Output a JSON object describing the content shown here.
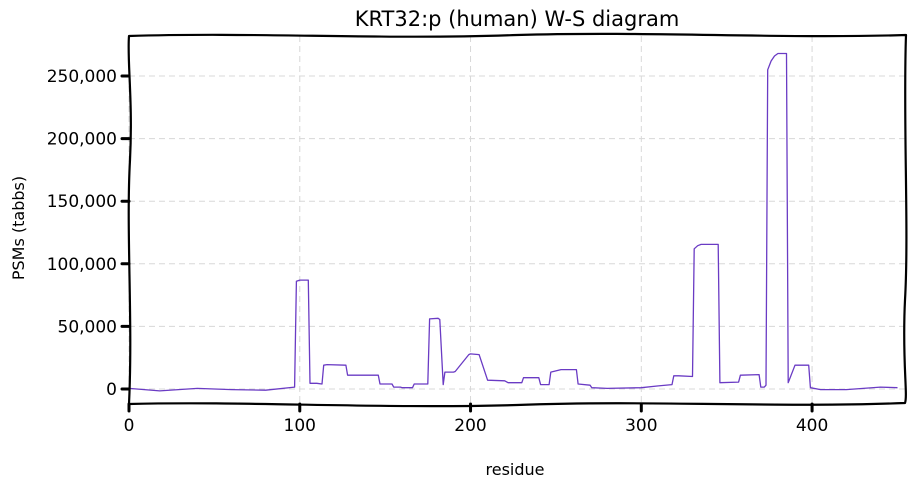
{
  "chart_data": {
    "type": "line",
    "title": "KRT32:p (human) W-S diagram",
    "xlabel": "residue",
    "ylabel": "PSMs (tabbs)",
    "xlim": [
      0,
      455
    ],
    "ylim": [
      -12000,
      282000
    ],
    "xticks": [
      0,
      100,
      200,
      300,
      400
    ],
    "xtick_labels": [
      "0",
      "100",
      "200",
      "300",
      "400"
    ],
    "yticks": [
      0,
      50000,
      100000,
      150000,
      200000,
      250000
    ],
    "ytick_labels": [
      "0",
      "50,000",
      "100,000",
      "150,000",
      "200,000",
      "250,000"
    ],
    "grid": true,
    "series": [
      {
        "color": "#6a3bc4",
        "x": [
          0,
          18,
          40,
          60,
          80,
          97,
          98,
          100,
          105,
          106,
          110,
          113,
          114,
          116,
          127,
          128,
          146,
          147,
          154,
          155,
          159,
          160,
          166,
          167,
          175,
          176,
          181,
          182,
          184,
          185,
          190,
          191,
          199,
          200,
          205,
          210,
          220,
          222,
          230,
          231,
          240,
          241,
          246,
          247,
          253,
          254,
          262,
          263,
          270,
          271,
          280,
          300,
          310,
          318,
          319,
          322,
          330,
          331,
          333,
          335,
          345,
          346,
          357,
          358,
          369,
          370,
          372,
          373,
          374,
          376,
          378,
          380,
          385,
          386,
          390,
          398,
          399,
          405,
          420,
          440,
          450
        ],
        "y": [
          500,
          -1500,
          500,
          -500,
          -1000,
          1500,
          86000,
          87000,
          87000,
          4500,
          4500,
          4000,
          19000,
          19500,
          19000,
          11000,
          11000,
          4000,
          4000,
          1500,
          1500,
          1000,
          1000,
          4000,
          4000,
          56000,
          56500,
          55500,
          3500,
          13500,
          13500,
          14000,
          27500,
          28000,
          27500,
          7000,
          6500,
          5000,
          5000,
          9000,
          9000,
          3500,
          3500,
          13500,
          15500,
          15500,
          15500,
          4000,
          3000,
          1000,
          500,
          1000,
          2500,
          3500,
          10500,
          10500,
          10000,
          112000,
          114500,
          115500,
          115500,
          5000,
          5500,
          11000,
          11500,
          1500,
          1500,
          3000,
          255000,
          262000,
          266000,
          268000,
          268000,
          5000,
          19000,
          19000,
          1000,
          -500,
          -500,
          1500,
          1000
        ]
      }
    ]
  }
}
